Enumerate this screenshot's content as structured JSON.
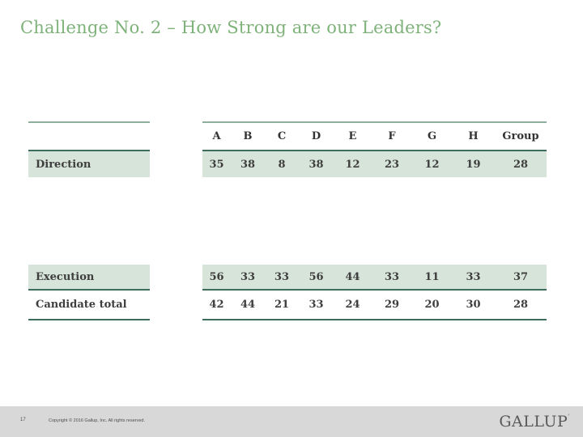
{
  "slide": {
    "title": "Challenge No. 2 – How Strong are our Leaders?",
    "page_number": "17",
    "copyright": "Copyright © 2016 Gallup, Inc. All rights reserved.",
    "logo": "GALLUP",
    "logo_mark": "’"
  },
  "table": {
    "columns": [
      "A",
      "B",
      "C",
      "D",
      "E",
      "F",
      "G",
      "H",
      "Group"
    ],
    "rows": [
      {
        "label": "Direction",
        "highlighted": true,
        "values": [
          35,
          38,
          8,
          38,
          12,
          23,
          12,
          19,
          28
        ]
      },
      {
        "label": "Execution",
        "highlighted": true,
        "values": [
          56,
          33,
          33,
          56,
          44,
          33,
          11,
          33,
          37
        ]
      },
      {
        "label": "Candidate total",
        "highlighted": false,
        "values": [
          42,
          44,
          21,
          33,
          24,
          29,
          20,
          30,
          28
        ]
      }
    ]
  },
  "colors": {
    "title_green": "#7fb27a",
    "row_highlight_green": "#d7e4da",
    "line_dark_green": "#3e6c5d",
    "line_sage_green": "#8fae9d",
    "footer_gray": "#d8d8d8",
    "logo_gray": "#59595b"
  }
}
